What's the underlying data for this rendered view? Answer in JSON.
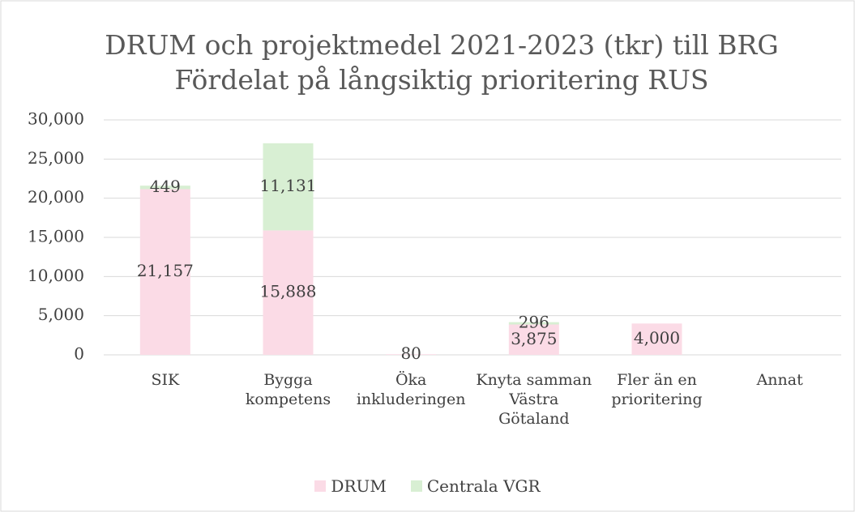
{
  "chart_data": {
    "type": "stacked_bar",
    "title": "DRUM och projektmedel 2021-2023 (tkr) till BRG",
    "subtitle": "Fördelat på långsiktig prioritering RUS",
    "categories": [
      "SIK",
      "Bygga kompetens",
      "Öka inkluderingen",
      "Knyta samman Västra Götaland",
      "Fler än en prioritering",
      "Annat"
    ],
    "series": [
      {
        "name": "DRUM",
        "color": "#fbdbe6",
        "values": [
          21157,
          15888,
          80,
          3875,
          4000,
          null
        ],
        "value_labels": [
          "21,157",
          "15,888",
          "80",
          "3,875",
          "4,000",
          null
        ]
      },
      {
        "name": "Centrala VGR",
        "color": "#d8efd3",
        "values": [
          449,
          11131,
          null,
          296,
          null,
          null
        ],
        "value_labels": [
          "449",
          "11,131",
          null,
          "296",
          null,
          null
        ]
      }
    ],
    "ylim": [
      0,
      30000
    ],
    "yticks": [
      0,
      {
        "value": 5000,
        "label": "5,000"
      },
      {
        "value": 10000,
        "label": "10,000"
      },
      {
        "value": 15000,
        "label": "15,000"
      },
      {
        "value": 20000,
        "label": "20,000"
      },
      {
        "value": 25000,
        "label": "25,000"
      },
      {
        "value": 30000,
        "label": "30,000"
      }
    ],
    "grid": true,
    "legend": "bottom"
  }
}
